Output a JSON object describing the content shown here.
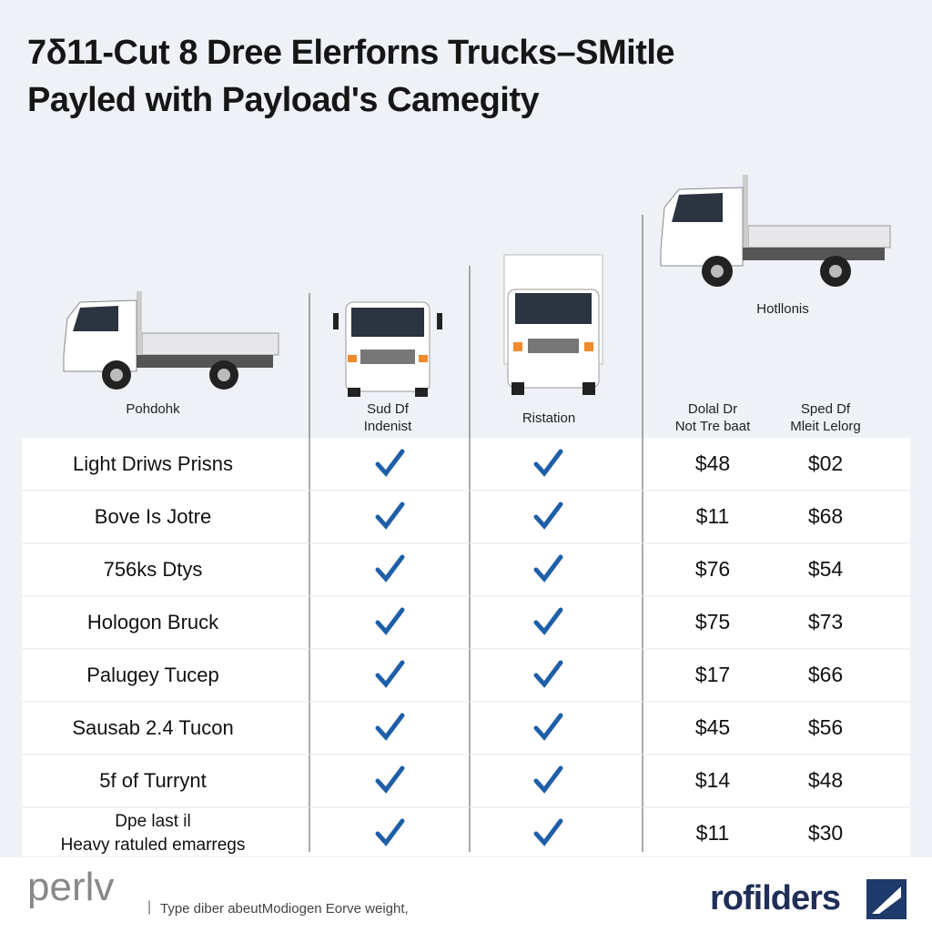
{
  "title": [
    "7δ11-Cut 8 Dree Elerforns Trucks–SMitle",
    "Payled with Payload's Camegity"
  ],
  "truck_labels": [
    [
      "Pohdohk"
    ],
    [
      "Sud Df",
      "Indenist"
    ],
    [
      "Ristation"
    ],
    [
      "Hotllonis"
    ]
  ],
  "price_headers": [
    [
      "Dolal Dr",
      "Not Tre baat"
    ],
    [
      "Sped Df",
      "Mleit Lelorg"
    ]
  ],
  "rows": [
    {
      "name": [
        "Light Driws Prisns"
      ],
      "prices": [
        "$48",
        "$02"
      ]
    },
    {
      "name": [
        "Bove Is Jotre"
      ],
      "prices": [
        "$11",
        "$68"
      ]
    },
    {
      "name": [
        "756ks Dtys"
      ],
      "prices": [
        "$76",
        "$54"
      ]
    },
    {
      "name": [
        "Hologon Bruck"
      ],
      "prices": [
        "$75",
        "$73"
      ]
    },
    {
      "name": [
        "Palugey Tucep"
      ],
      "prices": [
        "$17",
        "$66"
      ]
    },
    {
      "name": [
        "Sausab 2.4 Tucon"
      ],
      "prices": [
        "$45",
        "$56"
      ]
    },
    {
      "name": [
        "5f of Turrynt"
      ],
      "prices": [
        "$14",
        "$48"
      ]
    },
    {
      "name": [
        "Dpe last il",
        "Heavy ratuled emarregs"
      ],
      "prices": [
        "$11",
        "$30"
      ]
    }
  ],
  "footer": {
    "left_brand": "perlv",
    "caption": "Type diber abeutModiogen Eorve weight,",
    "right_brand": "rofilders"
  }
}
